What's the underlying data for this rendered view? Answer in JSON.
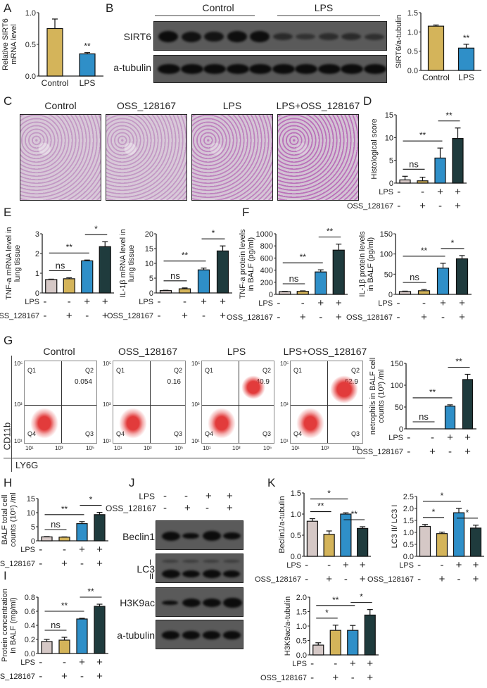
{
  "colors": {
    "control": "#d5c8c6",
    "oss": "#d4b45a",
    "lps": "#2f8fc8",
    "lps_oss": "#1f3b3d",
    "axis": "#222222",
    "flow_dots": "#e23b3b",
    "histology": "#b865b4"
  },
  "panel_letters": {
    "A": "A",
    "B": "B",
    "C": "C",
    "D": "D",
    "E": "E",
    "F": "F",
    "G": "G",
    "H": "H",
    "I": "I",
    "J": "J",
    "K": "K"
  },
  "groups": {
    "two": [
      "Control",
      "LPS"
    ],
    "four_lps": [
      "-",
      "-",
      "+",
      "+"
    ],
    "four_oss": [
      "-",
      "+",
      "-",
      "+"
    ],
    "lps_label": "LPS",
    "oss_label": "OSS_128167"
  },
  "panel_b": {
    "header_control": "Control",
    "header_lps": "LPS",
    "blot_labels": [
      "SIRT6",
      "a-tubulin"
    ]
  },
  "panel_c": {
    "titles": [
      "Control",
      "OSS_128167",
      "LPS",
      "LPS+OSS_128167"
    ]
  },
  "panel_g": {
    "titles": [
      "Control",
      "OSS_128167",
      "LPS",
      "LPS+OSS_128167"
    ],
    "q2_values": [
      "0.054",
      "0.16",
      "40.9",
      "62.9"
    ],
    "quadrants": [
      "Q1",
      "Q2",
      "Q3",
      "Q4"
    ],
    "yaxis": "CD11b",
    "xaxis": "LY6G",
    "ticks_y": [
      "10⁵",
      "10³",
      "10¹"
    ],
    "ticks_x": [
      "10¹",
      "10³",
      "10⁵"
    ]
  },
  "panel_j": {
    "blot_labels": [
      "Beclin1",
      "LC3",
      "H3K9ac",
      "a-tubulin"
    ],
    "lc3_bands": [
      "I",
      "II"
    ]
  },
  "chart_data": [
    {
      "id": "A",
      "type": "bar",
      "ylabel": "Relative SIRT6 mRNA level",
      "categories": [
        "Control",
        "LPS"
      ],
      "values": [
        0.75,
        0.35
      ],
      "errors": [
        0.15,
        0.02
      ],
      "ylim": [
        0,
        1.0
      ],
      "yticks": [
        "0.0",
        "0.5",
        "1.0"
      ],
      "annotations": [
        {
          "bar": 1,
          "text": "**"
        }
      ]
    },
    {
      "id": "B",
      "type": "bar",
      "ylabel": "SIRT6/a-tubulin",
      "categories": [
        "Control",
        "LPS"
      ],
      "values": [
        1.15,
        0.58
      ],
      "errors": [
        0.03,
        0.1
      ],
      "ylim": [
        0,
        1.5
      ],
      "yticks": [
        "0.0",
        "0.5",
        "1.0",
        "1.5"
      ],
      "annotations": [
        {
          "bar": 1,
          "text": "**"
        }
      ]
    },
    {
      "id": "D",
      "type": "bar",
      "ylabel": "Histological score",
      "values": [
        0.7,
        0.5,
        5.5,
        9.8
      ],
      "errors": [
        0.8,
        0.8,
        2.2,
        2.3
      ],
      "ylim": [
        0,
        15
      ],
      "yticks": [
        "0",
        "5",
        "10",
        "15"
      ],
      "brackets": [
        {
          "from": 0,
          "to": 1,
          "text": "ns"
        },
        {
          "from": 0,
          "to": 2,
          "text": "**"
        },
        {
          "from": 2,
          "to": 3,
          "text": "**"
        }
      ]
    },
    {
      "id": "E1",
      "type": "bar",
      "ylabel": "TNF-a mRNA level in lung tissue",
      "values": [
        0.68,
        0.72,
        1.63,
        2.35
      ],
      "errors": [
        0.02,
        0.05,
        0.04,
        0.25
      ],
      "ylim": [
        0,
        3
      ],
      "yticks": [
        "0",
        "1",
        "2",
        "3"
      ],
      "brackets": [
        {
          "from": 0,
          "to": 1,
          "text": "ns"
        },
        {
          "from": 0,
          "to": 2,
          "text": "**"
        },
        {
          "from": 2,
          "to": 3,
          "text": "*"
        }
      ]
    },
    {
      "id": "E2",
      "type": "bar",
      "ylabel": "IL-1β mRNA level in lung tissue",
      "values": [
        0.8,
        1.4,
        7.8,
        14.2
      ],
      "errors": [
        0.1,
        0.3,
        0.6,
        1.7
      ],
      "ylim": [
        0,
        20
      ],
      "yticks": [
        "0",
        "5",
        "10",
        "15",
        "20"
      ],
      "brackets": [
        {
          "from": 0,
          "to": 1,
          "text": "ns"
        },
        {
          "from": 0,
          "to": 2,
          "text": "**"
        },
        {
          "from": 2,
          "to": 3,
          "text": "*"
        }
      ]
    },
    {
      "id": "F1",
      "type": "bar",
      "ylabel": "TNF-a protein levels in BALF (pg/ml)",
      "values": [
        45,
        50,
        370,
        730
      ],
      "errors": [
        5,
        8,
        35,
        100
      ],
      "ylim": [
        0,
        1000
      ],
      "yticks": [
        "0",
        "200",
        "400",
        "600",
        "800",
        "1000"
      ],
      "brackets": [
        {
          "from": 0,
          "to": 1,
          "text": "ns"
        },
        {
          "from": 0,
          "to": 2,
          "text": "**"
        },
        {
          "from": 2,
          "to": 3,
          "text": "**"
        }
      ]
    },
    {
      "id": "F2",
      "type": "bar",
      "ylabel": "IL-1β protein levels in BALF (pg/ml)",
      "values": [
        7,
        9,
        65,
        88
      ],
      "errors": [
        1,
        3,
        12,
        8
      ],
      "ylim": [
        0,
        150
      ],
      "yticks": [
        "0",
        "50",
        "100",
        "150"
      ],
      "brackets": [
        {
          "from": 0,
          "to": 1,
          "text": "ns"
        },
        {
          "from": 0,
          "to": 2,
          "text": "**"
        },
        {
          "from": 2,
          "to": 3,
          "text": "*"
        }
      ]
    },
    {
      "id": "G",
      "type": "bar",
      "ylabel": "netrophils in BALF cell counts (10³) /ml",
      "values": [
        0,
        0,
        52,
        113
      ],
      "errors": [
        0,
        0,
        3,
        12
      ],
      "ylim": [
        0,
        150
      ],
      "yticks": [
        "0",
        "50",
        "100",
        "150"
      ],
      "brackets": [
        {
          "from": 0,
          "to": 1,
          "text": "ns"
        },
        {
          "from": 0,
          "to": 2,
          "text": "**"
        },
        {
          "from": 2,
          "to": 3,
          "text": "**"
        }
      ]
    },
    {
      "id": "H",
      "type": "bar",
      "ylabel": "BALF total cell counts (10⁵) /ml",
      "values": [
        1.4,
        1.3,
        6.1,
        9.3
      ],
      "errors": [
        0.1,
        0.1,
        0.7,
        0.8
      ],
      "ylim": [
        0,
        15
      ],
      "yticks": [
        "0",
        "5",
        "10",
        "15"
      ],
      "brackets": [
        {
          "from": 0,
          "to": 1,
          "text": "ns"
        },
        {
          "from": 0,
          "to": 2,
          "text": "**"
        },
        {
          "from": 2,
          "to": 3,
          "text": "*"
        }
      ]
    },
    {
      "id": "I",
      "type": "bar",
      "ylabel": "Protein concentration in BALF (mg/ml)",
      "values": [
        0.17,
        0.19,
        0.49,
        0.67
      ],
      "errors": [
        0.03,
        0.04,
        0.01,
        0.03
      ],
      "ylim": [
        0,
        0.8
      ],
      "yticks": [
        "0.0",
        "0.2",
        "0.4",
        "0.6",
        "0.8"
      ],
      "brackets": [
        {
          "from": 0,
          "to": 1,
          "text": "ns"
        },
        {
          "from": 0,
          "to": 2,
          "text": "**"
        },
        {
          "from": 2,
          "to": 3,
          "text": "**"
        }
      ]
    },
    {
      "id": "K1",
      "type": "bar",
      "ylabel": "Beclin1/a-tubulin",
      "values": [
        0.83,
        0.52,
        1.0,
        0.66
      ],
      "errors": [
        0.06,
        0.08,
        0.03,
        0.04
      ],
      "ylim": [
        0,
        1.5
      ],
      "yticks": [
        "0.0",
        "0.5",
        "1.0",
        "1.5"
      ],
      "brackets": [
        {
          "from": 0,
          "to": 1,
          "text": "**"
        },
        {
          "from": 0,
          "to": 2,
          "text": "*"
        },
        {
          "from": 2,
          "to": 3,
          "text": "**"
        }
      ]
    },
    {
      "id": "K2",
      "type": "bar",
      "ylabel": "LC3 II/ LC3 I",
      "values": [
        1.25,
        0.95,
        1.82,
        1.18
      ],
      "errors": [
        0.08,
        0.06,
        0.18,
        0.12
      ],
      "ylim": [
        0,
        2.5
      ],
      "yticks": [
        "0.0",
        "0.5",
        "1.0",
        "1.5",
        "2.0",
        "2.5"
      ],
      "brackets": [
        {
          "from": 0,
          "to": 1,
          "text": "*"
        },
        {
          "from": 0,
          "to": 2,
          "text": "*"
        },
        {
          "from": 2,
          "to": 3,
          "text": "*"
        }
      ]
    },
    {
      "id": "K3",
      "type": "bar",
      "ylabel": "H3K9ac/a-tubulin",
      "values": [
        0.34,
        0.85,
        0.85,
        1.38
      ],
      "errors": [
        0.08,
        0.18,
        0.17,
        0.19
      ],
      "ylim": [
        0,
        2.0
      ],
      "yticks": [
        "0.0",
        "0.5",
        "1.0",
        "1.5",
        "2.0"
      ],
      "brackets": [
        {
          "from": 0,
          "to": 1,
          "text": "*"
        },
        {
          "from": 0,
          "to": 2,
          "text": "**"
        },
        {
          "from": 2,
          "to": 3,
          "text": "*"
        }
      ]
    }
  ]
}
